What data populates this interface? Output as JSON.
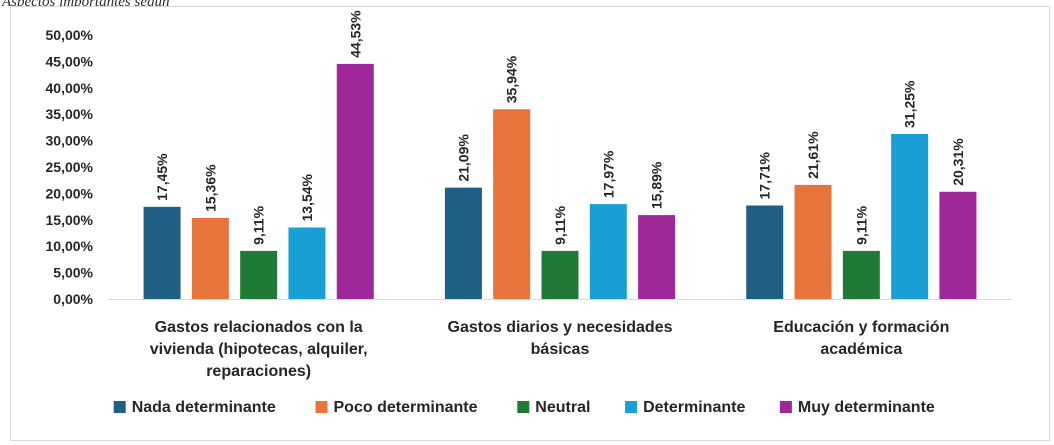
{
  "caption": "Aspectos importantes según",
  "chart_data": {
    "type": "bar",
    "title": "",
    "xlabel": "",
    "ylabel": "",
    "ylim": [
      0,
      50
    ],
    "yticks": [
      "0,00%",
      "5,00%",
      "10,00%",
      "15,00%",
      "20,00%",
      "25,00%",
      "30,00%",
      "35,00%",
      "40,00%",
      "45,00%",
      "50,00%"
    ],
    "grid": false,
    "legend_position": "bottom",
    "categories": [
      [
        "Gastos relacionados con la",
        "vivienda (hipotecas, alquiler,",
        "reparaciones)"
      ],
      [
        "Gastos diarios y necesidades",
        "básicas"
      ],
      [
        "Educación y formación",
        "académica"
      ]
    ],
    "series": [
      {
        "name": "Nada determinante",
        "color": "#1f5f84",
        "values": [
          17.45,
          21.09,
          17.71
        ],
        "labels": [
          "17,45%",
          "21,09%",
          "17,71%"
        ]
      },
      {
        "name": "Poco determinante",
        "color": "#e8743b",
        "values": [
          15.36,
          35.94,
          21.61
        ],
        "labels": [
          "15,36%",
          "35,94%",
          "21,61%"
        ]
      },
      {
        "name": "Neutral",
        "color": "#1f7a35",
        "values": [
          9.11,
          9.11,
          9.11
        ],
        "labels": [
          "9,11%",
          "9,11%",
          "9,11%"
        ]
      },
      {
        "name": "Determinante",
        "color": "#179fd6",
        "values": [
          13.54,
          17.97,
          31.25
        ],
        "labels": [
          "13,54%",
          "17,97%",
          "31,25%"
        ]
      },
      {
        "name": "Muy determinante",
        "color": "#a0279a",
        "values": [
          44.53,
          15.89,
          20.31
        ],
        "labels": [
          "44,53%",
          "15,89%",
          "20,31%"
        ]
      }
    ]
  }
}
